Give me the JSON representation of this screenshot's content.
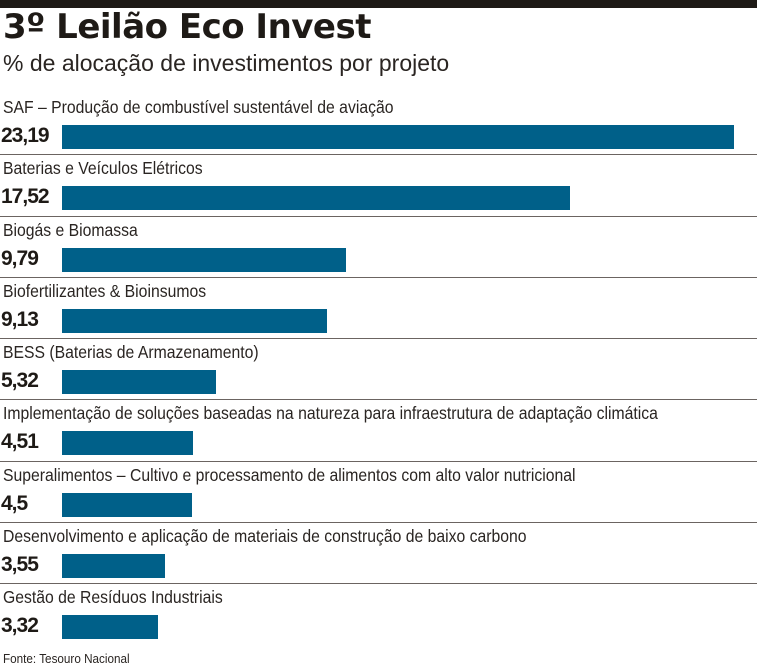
{
  "chart_data": {
    "type": "bar",
    "orientation": "horizontal",
    "title": "3º Leilão Eco Invest",
    "subtitle": "% de alocação de investimentos por projeto",
    "categories": [
      "SAF – Produção de combustível sustentável de aviação",
      "Baterias e Veículos Elétricos",
      "Biogás e Biomassa",
      "Biofertilizantes & Bioinsumos",
      "BESS (Baterias de Armazenamento)",
      "Implementação de soluções baseadas na natureza para infraestrutura de adaptação climática",
      "Superalimentos – Cultivo e processamento de alimentos com alto valor nutricional",
      "Desenvolvimento e aplicação de materiais de construção de baixo carbono",
      "Gestão de Resíduos Industriais"
    ],
    "values": [
      23.19,
      17.52,
      9.79,
      9.13,
      5.32,
      4.51,
      4.5,
      3.55,
      3.32
    ],
    "value_labels": [
      "23,19",
      "17,52",
      "9,79",
      "9,13",
      "5,32",
      "4,51",
      "4,5",
      "3,55",
      "3,32"
    ],
    "xlabel": "",
    "ylabel": "",
    "xlim": [
      0,
      23.19
    ],
    "grid": false,
    "legend": "none",
    "source": "Fonte: Tesouro Nacional",
    "bar_color": "#006089"
  }
}
